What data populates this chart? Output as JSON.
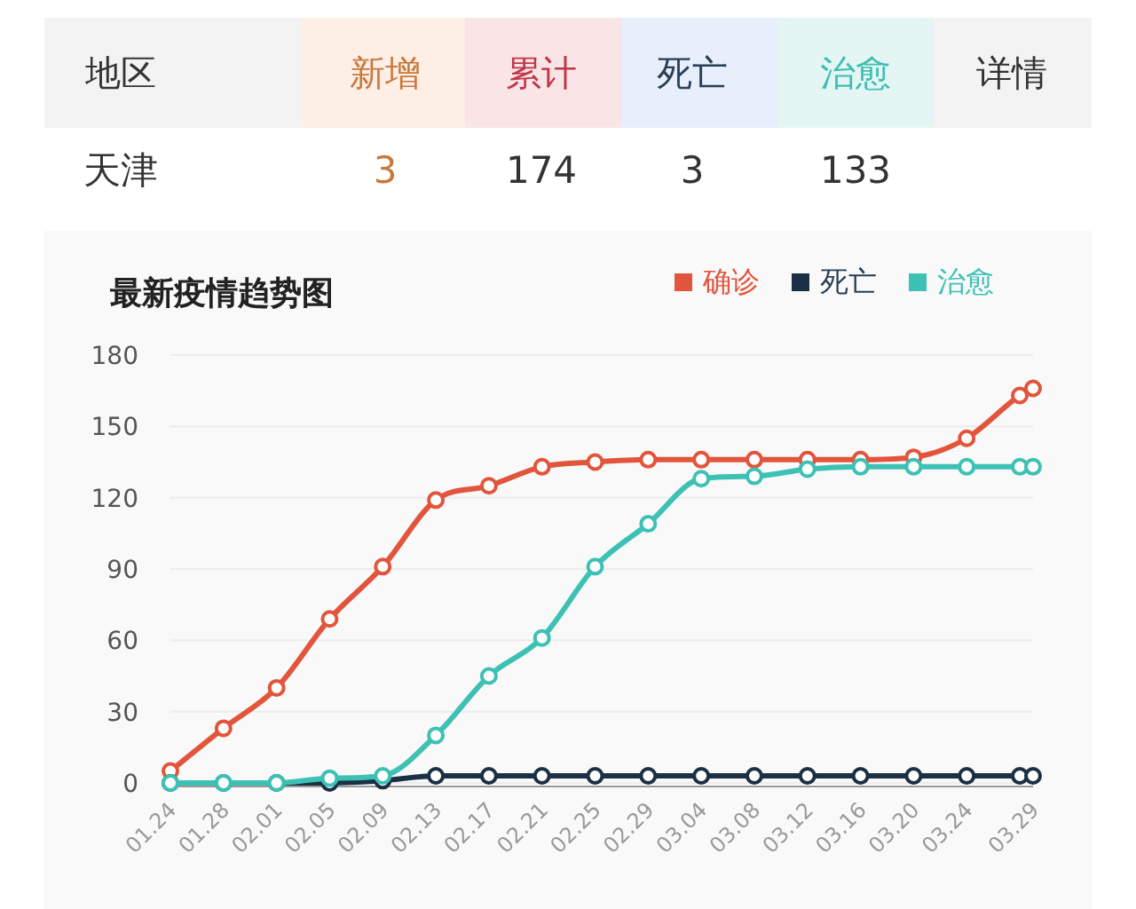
{
  "chart_data": {
    "type": "line",
    "title": "最新疫情趋势图",
    "annotations": [
      "地区",
      "新增",
      "累计",
      "死亡",
      "治愈",
      "详情",
      "天津",
      "3",
      "174",
      "3",
      "133"
    ],
    "xlim": [
      "--01-24",
      "--03-29"
    ],
    "xticks": [
      {
        "value": "--01-24",
        "label": "01.24"
      },
      {
        "value": "--01-28",
        "label": "01.28"
      },
      {
        "value": "--02-01",
        "label": "02.01"
      },
      {
        "value": "--02-05",
        "label": "02.05"
      },
      {
        "value": "--02-09",
        "label": "02.09"
      },
      {
        "value": "--02-13",
        "label": "02.13"
      },
      {
        "value": "--02-17",
        "label": "02.17"
      },
      {
        "value": "--02-21",
        "label": "02.21"
      },
      {
        "value": "--02-25",
        "label": "02.25"
      },
      {
        "value": "--02-29",
        "label": "02.29"
      },
      {
        "value": "--03-04",
        "label": "03.04"
      },
      {
        "value": "--03-08",
        "label": "03.08"
      },
      {
        "value": "--03-12",
        "label": "03.12"
      },
      {
        "value": "--03-16",
        "label": "03.16"
      },
      {
        "value": "--03-20",
        "label": "03.20"
      },
      {
        "value": "--03-24",
        "label": "03.24"
      },
      {
        "value": "--03-29",
        "label": "03.29"
      }
    ],
    "ylim": [
      0,
      180
    ],
    "yticks": [
      0,
      30,
      60,
      90,
      120,
      150,
      180
    ],
    "grid": "y",
    "legend": "top right",
    "marker": "circle",
    "line_style": "solid",
    "x": [
      "--01-24",
      "--01-28",
      "--02-01",
      "--02-05",
      "--02-09",
      "--02-13",
      "--02-17",
      "--02-21",
      "--02-25",
      "--02-29",
      "--03-04",
      "--03-08",
      "--03-12",
      "--03-16",
      "--03-20",
      "--03-24",
      "--03-28",
      "--03-29"
    ],
    "series": [
      {
        "name": "确诊",
        "color": "#e2553c",
        "values": [
          5,
          23,
          40,
          69,
          91,
          119,
          125,
          133,
          135,
          136,
          136,
          136,
          136,
          136,
          137,
          145,
          163,
          166
        ]
      },
      {
        "name": "死亡",
        "color": "#1b2f45",
        "values": [
          0,
          0,
          0,
          0,
          1,
          3,
          3,
          3,
          3,
          3,
          3,
          3,
          3,
          3,
          3,
          3,
          3,
          3
        ]
      },
      {
        "name": "治愈",
        "color": "#3ec1b5",
        "values": [
          0,
          0,
          0,
          2,
          3,
          20,
          45,
          61,
          91,
          109,
          128,
          129,
          132,
          133,
          133,
          133,
          133,
          133
        ]
      }
    ]
  }
}
